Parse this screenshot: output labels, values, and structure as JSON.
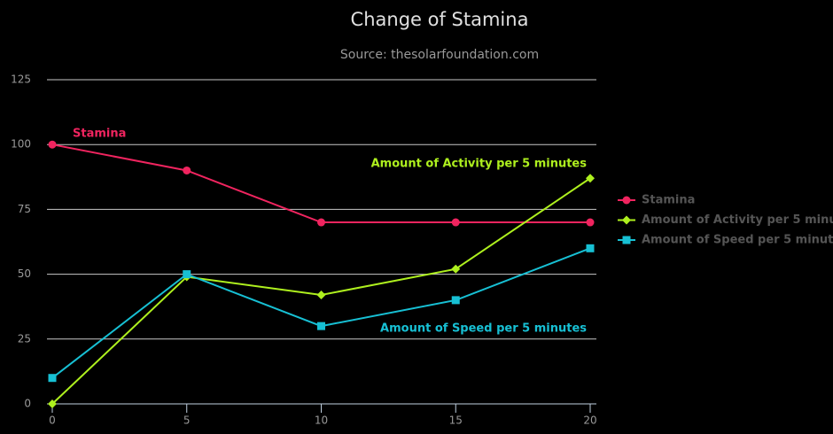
{
  "chart_data": {
    "type": "line",
    "title": "Change of Stamina",
    "subtitle": "Source: thesolarfoundation.com",
    "x": [
      0,
      5,
      10,
      15,
      20
    ],
    "series": [
      {
        "name": "Stamina",
        "color": "#f0245f",
        "marker": "circle",
        "values": [
          100,
          90,
          70,
          70,
          70
        ]
      },
      {
        "name": "Amount of Activity per 5 minutes",
        "color": "#aef01e",
        "marker": "diamond",
        "values": [
          0,
          49,
          42,
          52,
          87
        ]
      },
      {
        "name": "Amount of Speed per 5 minutes",
        "color": "#17c0d4",
        "marker": "square",
        "values": [
          10,
          50,
          30,
          40,
          60
        ]
      }
    ],
    "xlim": [
      0,
      20
    ],
    "xticks": [
      0,
      5,
      10,
      15,
      20
    ],
    "ylim": [
      0,
      125
    ],
    "yticks": [
      0,
      25,
      50,
      75,
      100,
      125
    ],
    "grid": true,
    "legend": "right"
  }
}
